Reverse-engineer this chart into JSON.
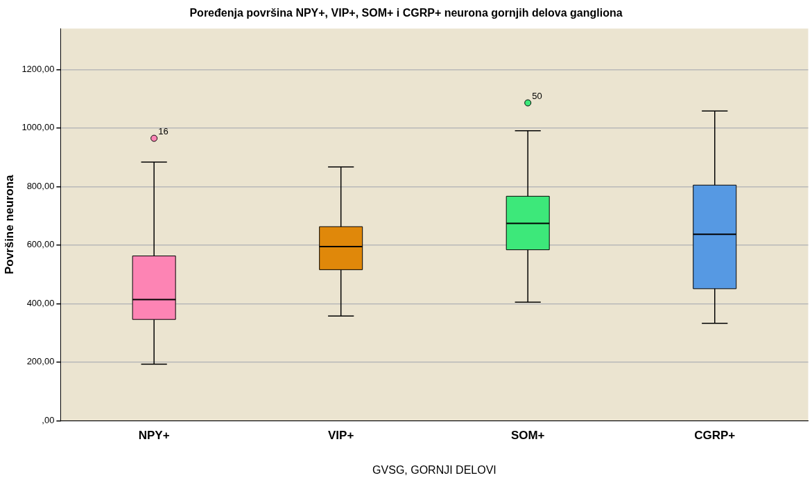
{
  "chart_data": {
    "type": "box",
    "title": "Poređenja površina NPY+, VIP+, SOM+ i CGRP+ neurona gornjih delova gangliona",
    "xlabel": "GVSG, GORNJI DELOVI",
    "ylabel": "Površine neurona",
    "categories": [
      "NPY+",
      "VIP+",
      "SOM+",
      "CGRP+"
    ],
    "colors": [
      "#fd84b4",
      "#e0880a",
      "#3de87a",
      "#5699e3"
    ],
    "boxes": [
      {
        "low": 193,
        "q1": 346,
        "median": 414,
        "q3": 563,
        "high": 884,
        "outliers": [
          965
        ]
      },
      {
        "low": 358,
        "q1": 516,
        "median": 595,
        "q3": 663,
        "high": 867
      },
      {
        "low": 405,
        "q1": 584,
        "median": 674,
        "q3": 767,
        "high": 991,
        "outliers": [
          1086
        ]
      },
      {
        "low": 333,
        "q1": 451,
        "median": 637,
        "q3": 805,
        "high": 1058
      }
    ],
    "ylim": [
      0,
      1340
    ],
    "yticks": [
      {
        "value": 0,
        "label": ",00"
      },
      {
        "value": 200,
        "label": "200,00"
      },
      {
        "value": 400,
        "label": "400,00"
      },
      {
        "value": 600,
        "label": "600,00"
      },
      {
        "value": 800,
        "label": "800,00"
      },
      {
        "value": 1000,
        "label": "1000,00"
      },
      {
        "value": 1200,
        "label": "1200,00"
      }
    ],
    "grid": "y",
    "annotations": [
      "16",
      "50"
    ]
  }
}
